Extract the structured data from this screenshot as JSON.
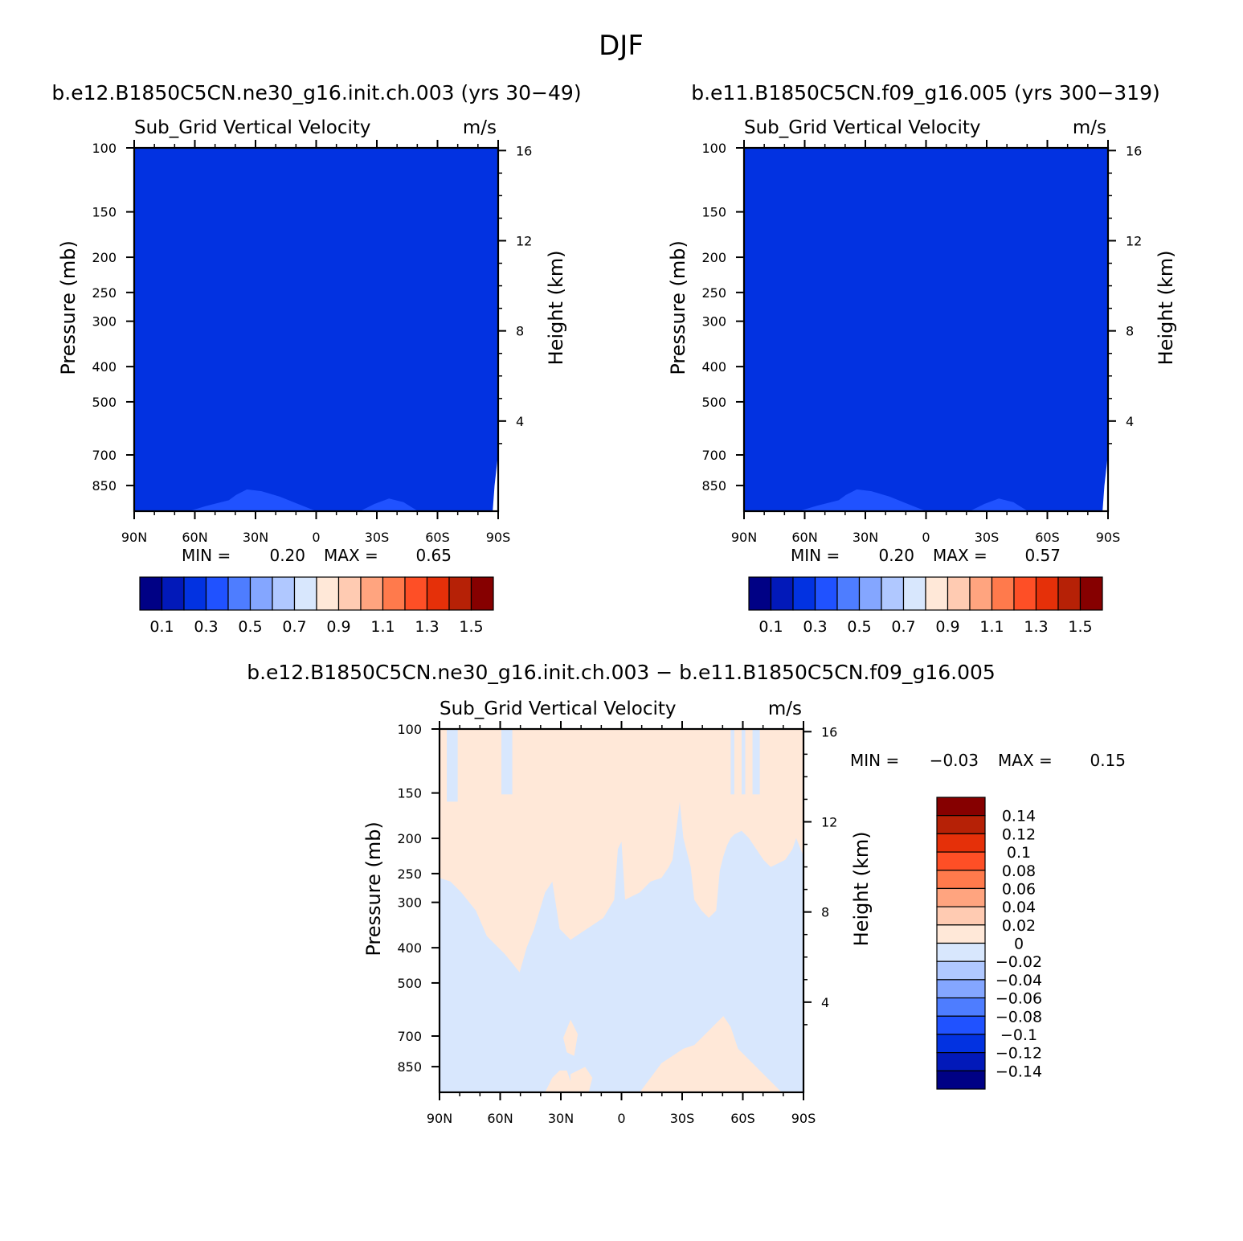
{
  "figure": {
    "title": "DJF"
  },
  "chart_data": [
    {
      "type": "heatmap",
      "name_panel": "panel-1",
      "title": "b.e12.B1850C5CN.ne30_g16.init.ch.003 (yrs 30−49)",
      "subtitle_left": "Sub_Grid Vertical Velocity",
      "subtitle_right": "m/s",
      "xlabel": "",
      "ylabel": "Pressure (mb)",
      "ylabel_right": "Height (km)",
      "x_ticks": [
        "90N",
        "60N",
        "30N",
        "0",
        "30S",
        "60S",
        "90S"
      ],
      "y_ticks": [
        100,
        150,
        200,
        250,
        300,
        400,
        500,
        700,
        850
      ],
      "y_ticks_right": [
        16,
        12,
        8,
        4
      ],
      "ylim": [
        100,
        1000
      ],
      "y_scale": "log",
      "min_label": "MIN =",
      "min_value": "0.20",
      "max_label": "MAX =",
      "max_value": "0.65",
      "dominant_level": "0.3",
      "fill_color": "#0232e1",
      "colorbar": {
        "orientation": "horizontal",
        "colors": [
          "#000185",
          "#0219b9",
          "#0232e1",
          "#2052ff",
          "#4e7dff",
          "#84a6ff",
          "#b0c8ff",
          "#d8e7fd",
          "#ffe8d8",
          "#ffcbb2",
          "#ffa47f",
          "#ff7a4c",
          "#fe4f26",
          "#e53009",
          "#b62106",
          "#860000"
        ],
        "labels": [
          "0.1",
          "0.3",
          "0.5",
          "0.7",
          "0.9",
          "1.1",
          "1.3",
          "1.5"
        ]
      }
    },
    {
      "type": "heatmap",
      "name_panel": "panel-2",
      "title": "b.e11.B1850C5CN.f09_g16.005 (yrs 300−319)",
      "subtitle_left": "Sub_Grid Vertical Velocity",
      "subtitle_right": "m/s",
      "xlabel": "",
      "ylabel": "Pressure (mb)",
      "ylabel_right": "Height (km)",
      "x_ticks": [
        "90N",
        "60N",
        "30N",
        "0",
        "30S",
        "60S",
        "90S"
      ],
      "y_ticks": [
        100,
        150,
        200,
        250,
        300,
        400,
        500,
        700,
        850
      ],
      "y_ticks_right": [
        16,
        12,
        8,
        4
      ],
      "ylim": [
        100,
        1000
      ],
      "y_scale": "log",
      "min_label": "MIN =",
      "min_value": "0.20",
      "max_label": "MAX =",
      "max_value": "0.57",
      "dominant_level": "0.3",
      "fill_color": "#0232e1",
      "colorbar": {
        "orientation": "horizontal",
        "colors": [
          "#000185",
          "#0219b9",
          "#0232e1",
          "#2052ff",
          "#4e7dff",
          "#84a6ff",
          "#b0c8ff",
          "#d8e7fd",
          "#ffe8d8",
          "#ffcbb2",
          "#ffa47f",
          "#ff7a4c",
          "#fe4f26",
          "#e53009",
          "#b62106",
          "#860000"
        ],
        "labels": [
          "0.1",
          "0.3",
          "0.5",
          "0.7",
          "0.9",
          "1.1",
          "1.3",
          "1.5"
        ]
      }
    },
    {
      "type": "heatmap",
      "name_panel": "panel-diff",
      "title": "b.e12.B1850C5CN.ne30_g16.init.ch.003 − b.e11.B1850C5CN.f09_g16.005",
      "subtitle_left": "Sub_Grid Vertical Velocity",
      "subtitle_right": "m/s",
      "xlabel": "",
      "ylabel": "Pressure (mb)",
      "ylabel_right": "Height (km)",
      "x_ticks": [
        "90N",
        "60N",
        "30N",
        "0",
        "30S",
        "60S",
        "90S"
      ],
      "y_ticks": [
        100,
        150,
        200,
        250,
        300,
        400,
        500,
        700,
        850
      ],
      "y_ticks_right": [
        16,
        12,
        8,
        4
      ],
      "ylim": [
        100,
        1000
      ],
      "y_scale": "log",
      "min_label": "MIN =",
      "min_value": "−0.03",
      "max_label": "MAX =",
      "max_value": "0.15",
      "positive_color": "#ffe8d8",
      "negative_color": "#d8e7fd",
      "colorbar": {
        "orientation": "vertical",
        "colors": [
          "#860000",
          "#b62106",
          "#e53009",
          "#fe4f26",
          "#ff7a4c",
          "#ffa47f",
          "#ffcbb2",
          "#ffe8d8",
          "#d8e7fd",
          "#b0c8ff",
          "#84a6ff",
          "#4e7dff",
          "#2052ff",
          "#0232e1",
          "#0219b9",
          "#000185"
        ],
        "labels": [
          "0.14",
          "0.12",
          "0.1",
          "0.08",
          "0.06",
          "0.04",
          "0.02",
          "0",
          "−0.02",
          "−0.04",
          "−0.06",
          "−0.08",
          "−0.1",
          "−0.12",
          "−0.14"
        ]
      }
    }
  ]
}
